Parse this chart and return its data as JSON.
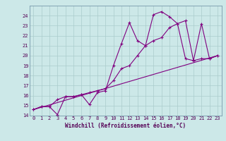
{
  "xlabel": "Windchill (Refroidissement éolien,°C)",
  "bg_color": "#cce8e8",
  "line_color": "#800080",
  "grid_color": "#aacccc",
  "spine_color": "#7799aa",
  "xlim": [
    -0.5,
    23.5
  ],
  "ylim": [
    14,
    25
  ],
  "xticks": [
    0,
    1,
    2,
    3,
    4,
    5,
    6,
    7,
    8,
    9,
    10,
    11,
    12,
    13,
    14,
    15,
    16,
    17,
    18,
    19,
    20,
    21,
    22,
    23
  ],
  "yticks": [
    14,
    15,
    16,
    17,
    18,
    19,
    20,
    21,
    22,
    23,
    24
  ],
  "line1_x": [
    0,
    1,
    2,
    3,
    4,
    5,
    6,
    7,
    8,
    9,
    10,
    11,
    12,
    13,
    14,
    15,
    16,
    17,
    18,
    19,
    20,
    21,
    22,
    23
  ],
  "line1_y": [
    14.6,
    14.9,
    14.9,
    14.1,
    15.9,
    15.9,
    16.1,
    15.1,
    16.3,
    16.5,
    19.0,
    21.2,
    23.3,
    21.5,
    21.0,
    24.1,
    24.4,
    23.9,
    23.2,
    19.7,
    19.5,
    23.2,
    19.7,
    20.0
  ],
  "line2_x": [
    0,
    1,
    2,
    3,
    4,
    5,
    6,
    7,
    8,
    9,
    10,
    11,
    12,
    13,
    14,
    15,
    16,
    17,
    18,
    19,
    20,
    21,
    22,
    23
  ],
  "line2_y": [
    14.6,
    14.9,
    14.9,
    15.6,
    15.9,
    15.9,
    16.1,
    16.3,
    16.5,
    16.7,
    17.5,
    18.7,
    19.0,
    20.0,
    21.0,
    21.5,
    21.8,
    22.8,
    23.2,
    23.5,
    19.5,
    19.7,
    19.7,
    20.0
  ],
  "line3_x": [
    0,
    23
  ],
  "line3_y": [
    14.6,
    20.0
  ],
  "tick_fontsize": 5.0,
  "xlabel_fontsize": 5.5,
  "tick_color": "#550055",
  "xlabel_color": "#550055"
}
